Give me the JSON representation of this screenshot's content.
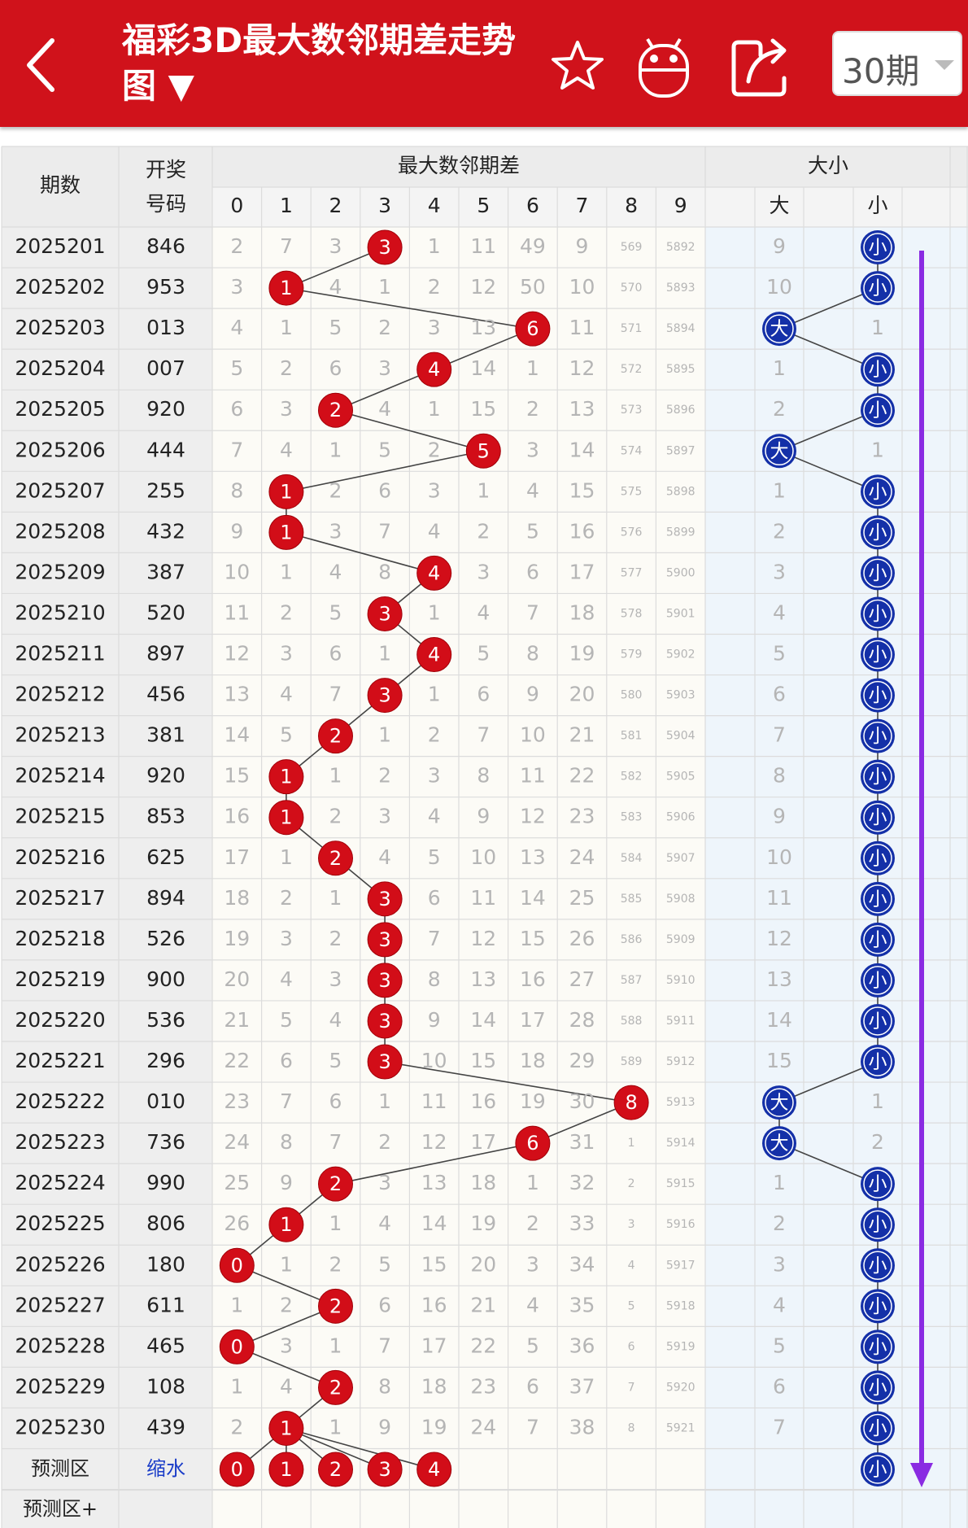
{
  "header": {
    "title": "福彩3D最大数邻期差走势图",
    "title_icon": "▼",
    "period_select": "30期"
  },
  "table": {
    "headers": {
      "period": "期数",
      "draw_line1": "开奖",
      "draw_line2": "号码",
      "miss_group": "最大数邻期差",
      "digits": [
        "0",
        "1",
        "2",
        "3",
        "4",
        "5",
        "6",
        "7",
        "8",
        "9"
      ],
      "size_group": "大小",
      "big": "大",
      "small": "小"
    },
    "rows": [
      {
        "period": "2025201",
        "draw": "846",
        "cells": [
          "2",
          "7",
          "3",
          {
            "ball": "3"
          },
          "1",
          "11",
          "49",
          "9",
          "569",
          "5892"
        ],
        "size": [
          "9",
          {
            "ball": "小"
          }
        ]
      },
      {
        "period": "2025202",
        "draw": "953",
        "cells": [
          "3",
          {
            "ball": "1"
          },
          "4",
          "1",
          "2",
          "12",
          "50",
          "10",
          "570",
          "5893"
        ],
        "size": [
          "10",
          {
            "ball": "小"
          }
        ]
      },
      {
        "period": "2025203",
        "draw": "013",
        "cells": [
          "4",
          "1",
          "5",
          "2",
          "3",
          "13",
          {
            "ball": "6"
          },
          "11",
          "571",
          "5894"
        ],
        "size": [
          {
            "ball": "大"
          },
          "1"
        ]
      },
      {
        "period": "2025204",
        "draw": "007",
        "cells": [
          "5",
          "2",
          "6",
          "3",
          {
            "ball": "4"
          },
          "14",
          "1",
          "12",
          "572",
          "5895"
        ],
        "size": [
          "1",
          {
            "ball": "小"
          }
        ]
      },
      {
        "period": "2025205",
        "draw": "920",
        "cells": [
          "6",
          "3",
          {
            "ball": "2"
          },
          "4",
          "1",
          "15",
          "2",
          "13",
          "573",
          "5896"
        ],
        "size": [
          "2",
          {
            "ball": "小"
          }
        ]
      },
      {
        "period": "2025206",
        "draw": "444",
        "cells": [
          "7",
          "4",
          "1",
          "5",
          "2",
          {
            "ball": "5"
          },
          "3",
          "14",
          "574",
          "5897"
        ],
        "size": [
          {
            "ball": "大"
          },
          "1"
        ]
      },
      {
        "period": "2025207",
        "draw": "255",
        "cells": [
          "8",
          {
            "ball": "1"
          },
          "2",
          "6",
          "3",
          "1",
          "4",
          "15",
          "575",
          "5898"
        ],
        "size": [
          "1",
          {
            "ball": "小"
          }
        ]
      },
      {
        "period": "2025208",
        "draw": "432",
        "cells": [
          "9",
          {
            "ball": "1"
          },
          "3",
          "7",
          "4",
          "2",
          "5",
          "16",
          "576",
          "5899"
        ],
        "size": [
          "2",
          {
            "ball": "小"
          }
        ]
      },
      {
        "period": "2025209",
        "draw": "387",
        "cells": [
          "10",
          "1",
          "4",
          "8",
          {
            "ball": "4"
          },
          "3",
          "6",
          "17",
          "577",
          "5900"
        ],
        "size": [
          "3",
          {
            "ball": "小"
          }
        ]
      },
      {
        "period": "2025210",
        "draw": "520",
        "cells": [
          "11",
          "2",
          "5",
          {
            "ball": "3"
          },
          "1",
          "4",
          "7",
          "18",
          "578",
          "5901"
        ],
        "size": [
          "4",
          {
            "ball": "小"
          }
        ]
      },
      {
        "period": "2025211",
        "draw": "897",
        "cells": [
          "12",
          "3",
          "6",
          "1",
          {
            "ball": "4"
          },
          "5",
          "8",
          "19",
          "579",
          "5902"
        ],
        "size": [
          "5",
          {
            "ball": "小"
          }
        ]
      },
      {
        "period": "2025212",
        "draw": "456",
        "cells": [
          "13",
          "4",
          "7",
          {
            "ball": "3"
          },
          "1",
          "6",
          "9",
          "20",
          "580",
          "5903"
        ],
        "size": [
          "6",
          {
            "ball": "小"
          }
        ]
      },
      {
        "period": "2025213",
        "draw": "381",
        "cells": [
          "14",
          "5",
          {
            "ball": "2"
          },
          "1",
          "2",
          "7",
          "10",
          "21",
          "581",
          "5904"
        ],
        "size": [
          "7",
          {
            "ball": "小"
          }
        ]
      },
      {
        "period": "2025214",
        "draw": "920",
        "cells": [
          "15",
          {
            "ball": "1"
          },
          "1",
          "2",
          "3",
          "8",
          "11",
          "22",
          "582",
          "5905"
        ],
        "size": [
          "8",
          {
            "ball": "小"
          }
        ]
      },
      {
        "period": "2025215",
        "draw": "853",
        "cells": [
          "16",
          {
            "ball": "1"
          },
          "2",
          "3",
          "4",
          "9",
          "12",
          "23",
          "583",
          "5906"
        ],
        "size": [
          "9",
          {
            "ball": "小"
          }
        ]
      },
      {
        "period": "2025216",
        "draw": "625",
        "cells": [
          "17",
          "1",
          {
            "ball": "2"
          },
          "4",
          "5",
          "10",
          "13",
          "24",
          "584",
          "5907"
        ],
        "size": [
          "10",
          {
            "ball": "小"
          }
        ]
      },
      {
        "period": "2025217",
        "draw": "894",
        "cells": [
          "18",
          "2",
          "1",
          {
            "ball": "3"
          },
          "6",
          "11",
          "14",
          "25",
          "585",
          "5908"
        ],
        "size": [
          "11",
          {
            "ball": "小"
          }
        ]
      },
      {
        "period": "2025218",
        "draw": "526",
        "cells": [
          "19",
          "3",
          "2",
          {
            "ball": "3"
          },
          "7",
          "12",
          "15",
          "26",
          "586",
          "5909"
        ],
        "size": [
          "12",
          {
            "ball": "小"
          }
        ]
      },
      {
        "period": "2025219",
        "draw": "900",
        "cells": [
          "20",
          "4",
          "3",
          {
            "ball": "3"
          },
          "8",
          "13",
          "16",
          "27",
          "587",
          "5910"
        ],
        "size": [
          "13",
          {
            "ball": "小"
          }
        ]
      },
      {
        "period": "2025220",
        "draw": "536",
        "cells": [
          "21",
          "5",
          "4",
          {
            "ball": "3"
          },
          "9",
          "14",
          "17",
          "28",
          "588",
          "5911"
        ],
        "size": [
          "14",
          {
            "ball": "小"
          }
        ]
      },
      {
        "period": "2025221",
        "draw": "296",
        "cells": [
          "22",
          "6",
          "5",
          {
            "ball": "3"
          },
          "10",
          "15",
          "18",
          "29",
          "589",
          "5912"
        ],
        "size": [
          "15",
          {
            "ball": "小"
          }
        ]
      },
      {
        "period": "2025222",
        "draw": "010",
        "cells": [
          "23",
          "7",
          "6",
          "1",
          "11",
          "16",
          "19",
          "30",
          {
            "ball": "8"
          },
          "5913"
        ],
        "size": [
          {
            "ball": "大"
          },
          "1"
        ]
      },
      {
        "period": "2025223",
        "draw": "736",
        "cells": [
          "24",
          "8",
          "7",
          "2",
          "12",
          "17",
          {
            "ball": "6"
          },
          "31",
          "1",
          "5914"
        ],
        "size": [
          {
            "ball": "大"
          },
          "2"
        ]
      },
      {
        "period": "2025224",
        "draw": "990",
        "cells": [
          "25",
          "9",
          {
            "ball": "2"
          },
          "3",
          "13",
          "18",
          "1",
          "32",
          "2",
          "5915"
        ],
        "size": [
          "1",
          {
            "ball": "小"
          }
        ]
      },
      {
        "period": "2025225",
        "draw": "806",
        "cells": [
          "26",
          {
            "ball": "1"
          },
          "1",
          "4",
          "14",
          "19",
          "2",
          "33",
          "3",
          "5916"
        ],
        "size": [
          "2",
          {
            "ball": "小"
          }
        ]
      },
      {
        "period": "2025226",
        "draw": "180",
        "cells": [
          {
            "ball": "0"
          },
          "1",
          "2",
          "5",
          "15",
          "20",
          "3",
          "34",
          "4",
          "5917"
        ],
        "size": [
          "3",
          {
            "ball": "小"
          }
        ]
      },
      {
        "period": "2025227",
        "draw": "611",
        "cells": [
          "1",
          "2",
          {
            "ball": "2"
          },
          "6",
          "16",
          "21",
          "4",
          "35",
          "5",
          "5918"
        ],
        "size": [
          "4",
          {
            "ball": "小"
          }
        ]
      },
      {
        "period": "2025228",
        "draw": "465",
        "cells": [
          {
            "ball": "0"
          },
          "3",
          "1",
          "7",
          "17",
          "22",
          "5",
          "36",
          "6",
          "5919"
        ],
        "size": [
          "5",
          {
            "ball": "小"
          }
        ]
      },
      {
        "period": "2025229",
        "draw": "108",
        "cells": [
          "1",
          "4",
          {
            "ball": "2"
          },
          "8",
          "18",
          "23",
          "6",
          "37",
          "7",
          "5920"
        ],
        "size": [
          "6",
          {
            "ball": "小"
          }
        ]
      },
      {
        "period": "2025230",
        "draw": "439",
        "cells": [
          "2",
          {
            "ball": "1"
          },
          "1",
          "9",
          "19",
          "24",
          "7",
          "38",
          "8",
          "5921"
        ],
        "size": [
          "7",
          {
            "ball": "小"
          }
        ]
      }
    ],
    "forecast": {
      "label": "预测区",
      "action": "缩水",
      "balls": [
        "0",
        "1",
        "2",
        "3",
        "4"
      ],
      "size_ball": "小"
    },
    "forecast_plus": {
      "label": "预测区+"
    }
  }
}
